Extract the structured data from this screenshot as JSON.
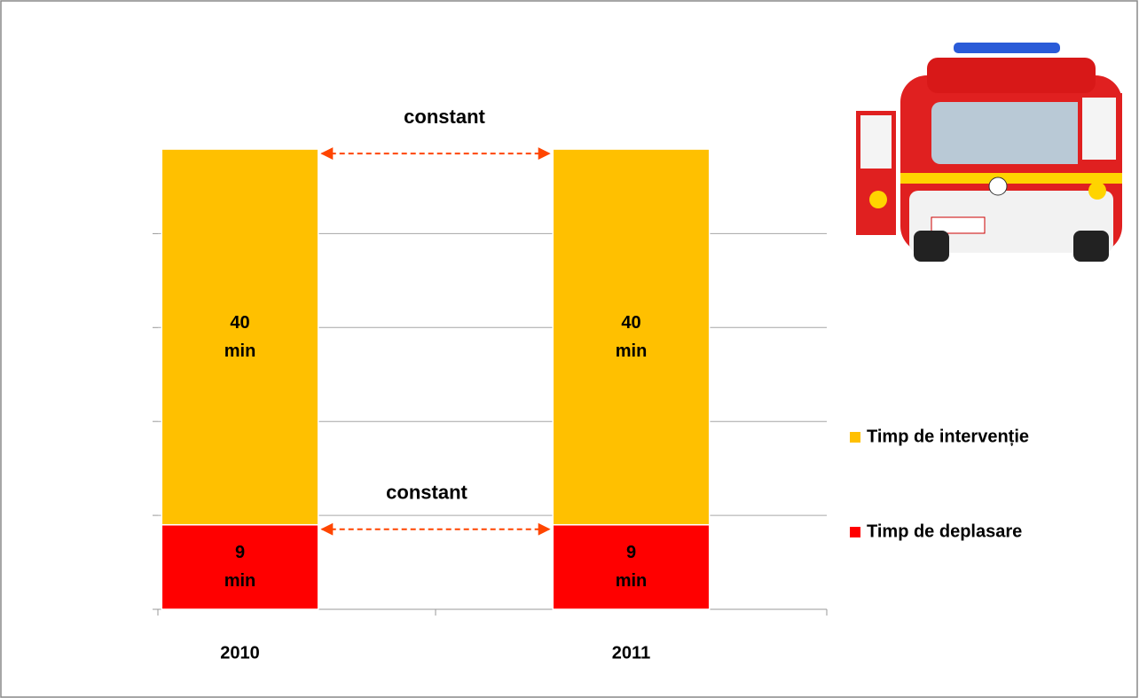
{
  "chart_data": {
    "type": "stacked_bar",
    "categories": [
      "2010",
      "2011"
    ],
    "series": [
      {
        "name": "Timp de deplasare",
        "color": "#ff0000",
        "values": [
          9,
          9
        ],
        "value_labels": [
          "9 min",
          "9 min"
        ]
      },
      {
        "name": "Timp de intervenție",
        "color": "#ffc000",
        "values": [
          40,
          40
        ],
        "value_labels": [
          "40 min",
          "40 min"
        ]
      }
    ],
    "ylim": [
      0,
      50
    ],
    "yticks": [
      0,
      10,
      20,
      30,
      40
    ],
    "ytick_labels": false,
    "grid": true,
    "annotations": [
      "constant",
      "constant"
    ],
    "legend": "right"
  }
}
